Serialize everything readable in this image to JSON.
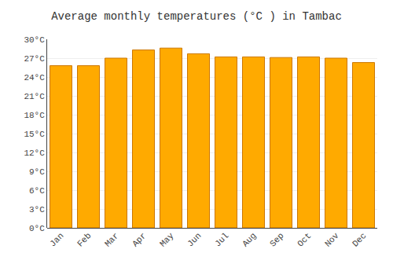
{
  "chart_data": {
    "type": "bar",
    "title": "Average monthly temperatures (°C ) in Tambac",
    "categories": [
      "Jan",
      "Feb",
      "Mar",
      "Apr",
      "May",
      "Jun",
      "Jul",
      "Aug",
      "Sep",
      "Oct",
      "Nov",
      "Dec"
    ],
    "values": [
      25.8,
      25.8,
      27.0,
      28.3,
      28.6,
      27.7,
      27.2,
      27.2,
      27.1,
      27.2,
      27.0,
      26.3
    ],
    "color": "#FFAA00",
    "ylim": [
      0,
      30
    ],
    "yticks": [
      {
        "value": 0,
        "label": "0°C"
      },
      {
        "value": 3,
        "label": "3°C"
      },
      {
        "value": 6,
        "label": "6°C"
      },
      {
        "value": 9,
        "label": "9°C"
      },
      {
        "value": 12,
        "label": "12°C"
      },
      {
        "value": 15,
        "label": "15°C"
      },
      {
        "value": 18,
        "label": "18°C"
      },
      {
        "value": 21,
        "label": "21°C"
      },
      {
        "value": 24,
        "label": "24°C"
      },
      {
        "value": 27,
        "label": "27°C"
      },
      {
        "value": 30,
        "label": "30°C"
      }
    ],
    "grid": true
  }
}
